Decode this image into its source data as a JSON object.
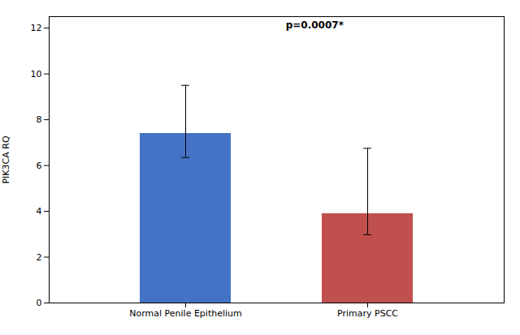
{
  "chart_data": {
    "type": "bar",
    "categories": [
      "Normal Penile Epithelium",
      "Primary PSCC"
    ],
    "values": [
      7.4,
      3.9
    ],
    "error_upper": [
      2.1,
      2.85
    ],
    "error_lower": [
      1.05,
      0.92
    ],
    "colors": [
      "#4472C4",
      "#C0504D"
    ],
    "ylabel": "PIK3CA RQ",
    "annotation": "p=0.0007*",
    "ylim": [
      0,
      12.5
    ],
    "yticks": [
      0,
      2,
      4,
      6,
      8,
      10,
      12
    ],
    "grid": false
  }
}
